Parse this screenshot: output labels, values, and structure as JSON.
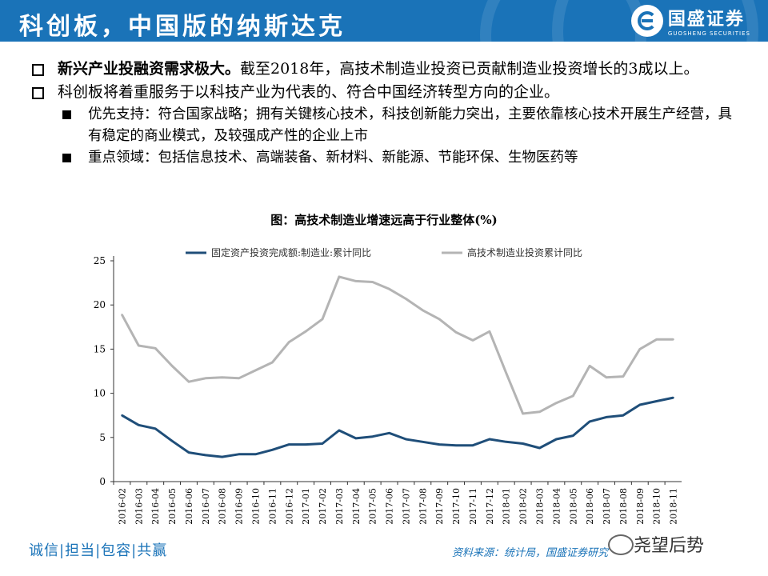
{
  "header": {
    "title": "科创板，中国版的纳斯达克",
    "logo_cn": "国盛证券",
    "logo_en": "GUOSHENG SECURITIES",
    "color": "#1a73b8"
  },
  "bullets": [
    {
      "strong": "新兴产业投融资需求极大。",
      "text": "截至2018年，高技术制造业投资已贡献制造业投资增长的3成以上。"
    },
    {
      "strong": "",
      "text": "科创板将着重服务于以科技产业为代表的、符合中国经济转型方向的企业。"
    }
  ],
  "subbullets": [
    "优先支持：符合国家战略；拥有关键核心技术，科技创新能力突出，主要依靠核心技术开展生产经营，具有稳定的商业模式，及较强成产性的企业上市",
    "重点领域：包括信息技术、高端装备、新材料、新能源、节能环保、生物医药等"
  ],
  "chart_data": {
    "type": "line",
    "title": "图：高技术制造业增速远高于行业整体(%)",
    "ylim": [
      0,
      25
    ],
    "yticks": [
      0,
      5,
      10,
      15,
      20,
      25
    ],
    "legend_position": "top",
    "grid": false,
    "categories": [
      "2016-02",
      "2016-03",
      "2016-04",
      "2016-05",
      "2016-06",
      "2016-07",
      "2016-08",
      "2016-09",
      "2016-10",
      "2016-11",
      "2016-12",
      "2017-01",
      "2017-02",
      "2017-03",
      "2017-04",
      "2017-05",
      "2017-06",
      "2017-07",
      "2017-08",
      "2017-09",
      "2017-10",
      "2017-11",
      "2017-12",
      "2018-01",
      "2018-02",
      "2018-03",
      "2018-04",
      "2018-05",
      "2018-06",
      "2018-07",
      "2018-08",
      "2018-09",
      "2018-10",
      "2018-11"
    ],
    "series": [
      {
        "name": "固定资产投资完成额:制造业:累计同比",
        "color": "#1f4e79",
        "values": [
          7.5,
          6.4,
          6.0,
          4.6,
          3.3,
          3.0,
          2.8,
          3.1,
          3.1,
          3.6,
          4.2,
          4.2,
          4.3,
          5.8,
          4.9,
          5.1,
          5.5,
          4.8,
          4.5,
          4.2,
          4.1,
          4.1,
          4.8,
          4.5,
          4.3,
          3.8,
          4.8,
          5.2,
          6.8,
          7.3,
          7.5,
          8.7,
          9.1,
          9.5
        ]
      },
      {
        "name": "高技术制造业投资累计同比",
        "color": "#b4b4b4",
        "values": [
          18.9,
          15.4,
          15.1,
          13.1,
          11.3,
          11.7,
          11.8,
          11.7,
          12.6,
          13.5,
          15.8,
          17.0,
          18.4,
          23.2,
          22.7,
          22.6,
          21.8,
          20.7,
          19.4,
          18.4,
          16.9,
          16.0,
          17.0,
          12.3,
          7.7,
          7.9,
          8.9,
          9.7,
          13.1,
          11.8,
          11.9,
          15.0,
          16.1,
          16.1
        ]
      }
    ]
  },
  "footer": {
    "left": "诚信|担当|包容|共赢",
    "source": "资料来源：统计局，国盛证券研究",
    "watermark": "尧望后势"
  }
}
